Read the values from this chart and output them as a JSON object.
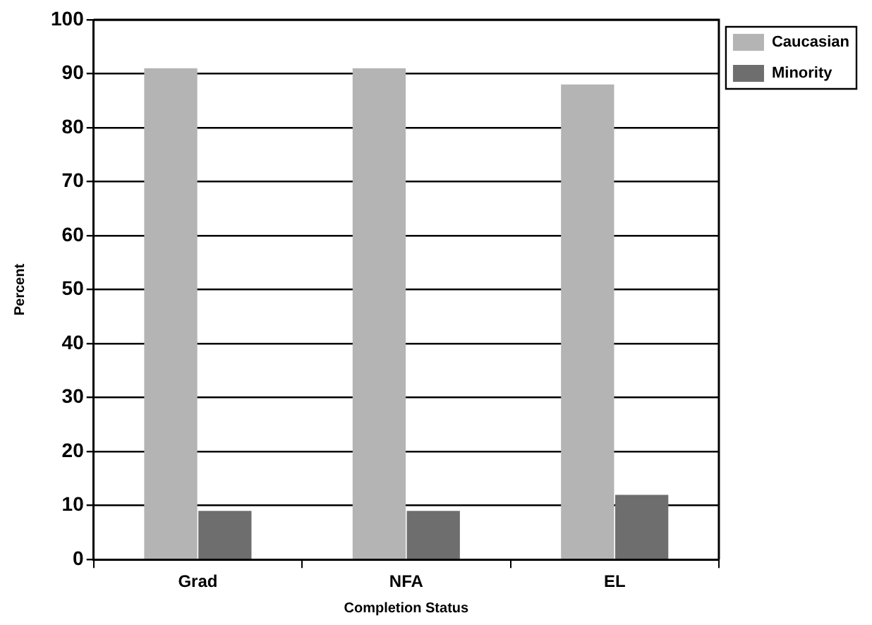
{
  "chart_data": {
    "type": "bar",
    "xlabel": "Completion Status",
    "ylabel": "Percent",
    "categories": [
      "Grad",
      "NFA",
      "EL"
    ],
    "series": [
      {
        "name": "Caucasian",
        "color": "#b4b4b4",
        "values": [
          91,
          91,
          88
        ]
      },
      {
        "name": "Minority",
        "color": "#6e6e6e",
        "values": [
          9,
          9,
          12
        ]
      }
    ],
    "ylim": [
      0,
      100
    ],
    "yticks": [
      0,
      10,
      20,
      30,
      40,
      50,
      60,
      70,
      80,
      90,
      100
    ],
    "grid": "y",
    "legend": "top right"
  }
}
